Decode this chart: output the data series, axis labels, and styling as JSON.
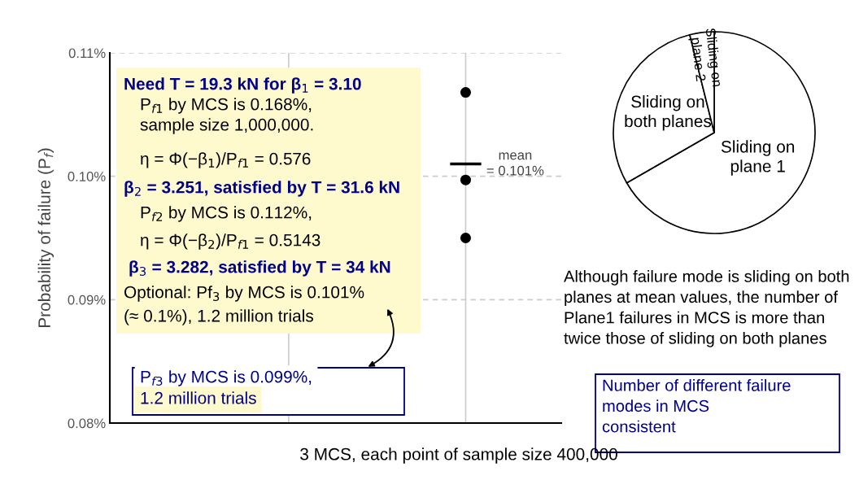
{
  "chart_data": [
    {
      "type": "scatter",
      "ylabel": "Probability of failure (P$_{f}$)",
      "xlabel": "3 MCS, each point of sample size 400,000",
      "categories": [
        null,
        null
      ],
      "series": [
        {
          "type": "scatter",
          "color": "#000000",
          "values": [
            null,
            0.1068
          ]
        },
        {
          "type": "scatter",
          "color": "#000000",
          "values": [
            null,
            0.0997
          ]
        },
        {
          "type": "scatter",
          "color": "#000000",
          "values": [
            null,
            0.095
          ]
        }
      ],
      "marker": "circle",
      "ylim": [
        0.08,
        0.11
      ],
      "yticks": [
        {
          "value": 0.08,
          "label": "0.08%"
        },
        {
          "value": 0.09,
          "label": "0.09%"
        },
        {
          "value": 0.1,
          "label": "0.10%"
        },
        {
          "value": 0.11,
          "label": "0.11%"
        }
      ],
      "tick_labels": "y",
      "grid": true,
      "ref_lines": [
        {
          "axis": "y",
          "value": 0.101,
          "label": "mean\n= 0.101%",
          "color": "#000000"
        }
      ],
      "annotations": [
        "Need T = 19.3 kN for β$_{1}$ = 3.10",
        "P$_{f1}$ by MCS is 0.168%,",
        "sample size 1,000,000.",
        "η = Φ(−β$_{1}$)/P$_{f1}$ = 0.576",
        "β$_{2}$ = 3.251, satisfied by T = 31.6 kN",
        "P$_{f2}$ by MCS is 0.112%,",
        "η = Φ(−β$_{2}$)/P$_{f1}$ = 0.5143",
        "β$_{3}$ = 3.282, satisfied by T = 34 kN",
        "Optional: Pf$_{3}$ by MCS is 0.101%",
        "(≈ 0.1%), 1.2 million trials",
        "P$_{f3}$ by MCS is 0.099%,",
        "1.2 million trials"
      ]
    },
    {
      "type": "pie",
      "categories": [
        "Sliding on\nplane 1",
        "Sliding on\nboth planes",
        "Sliding on\nplane 2"
      ],
      "values": [
        66.7,
        29.4,
        3.9
      ],
      "colors": [
        "#ffffff",
        "#ffffff",
        "#ffffff"
      ],
      "annotations": [
        "Although failure mode is sliding on both\nplanes at mean values, the number of\nPlane1 failures in MCS is more than\ntwice those of sliding on both planes",
        "Number of different failure\nmodes in MCS\nconsistent"
      ]
    }
  ]
}
